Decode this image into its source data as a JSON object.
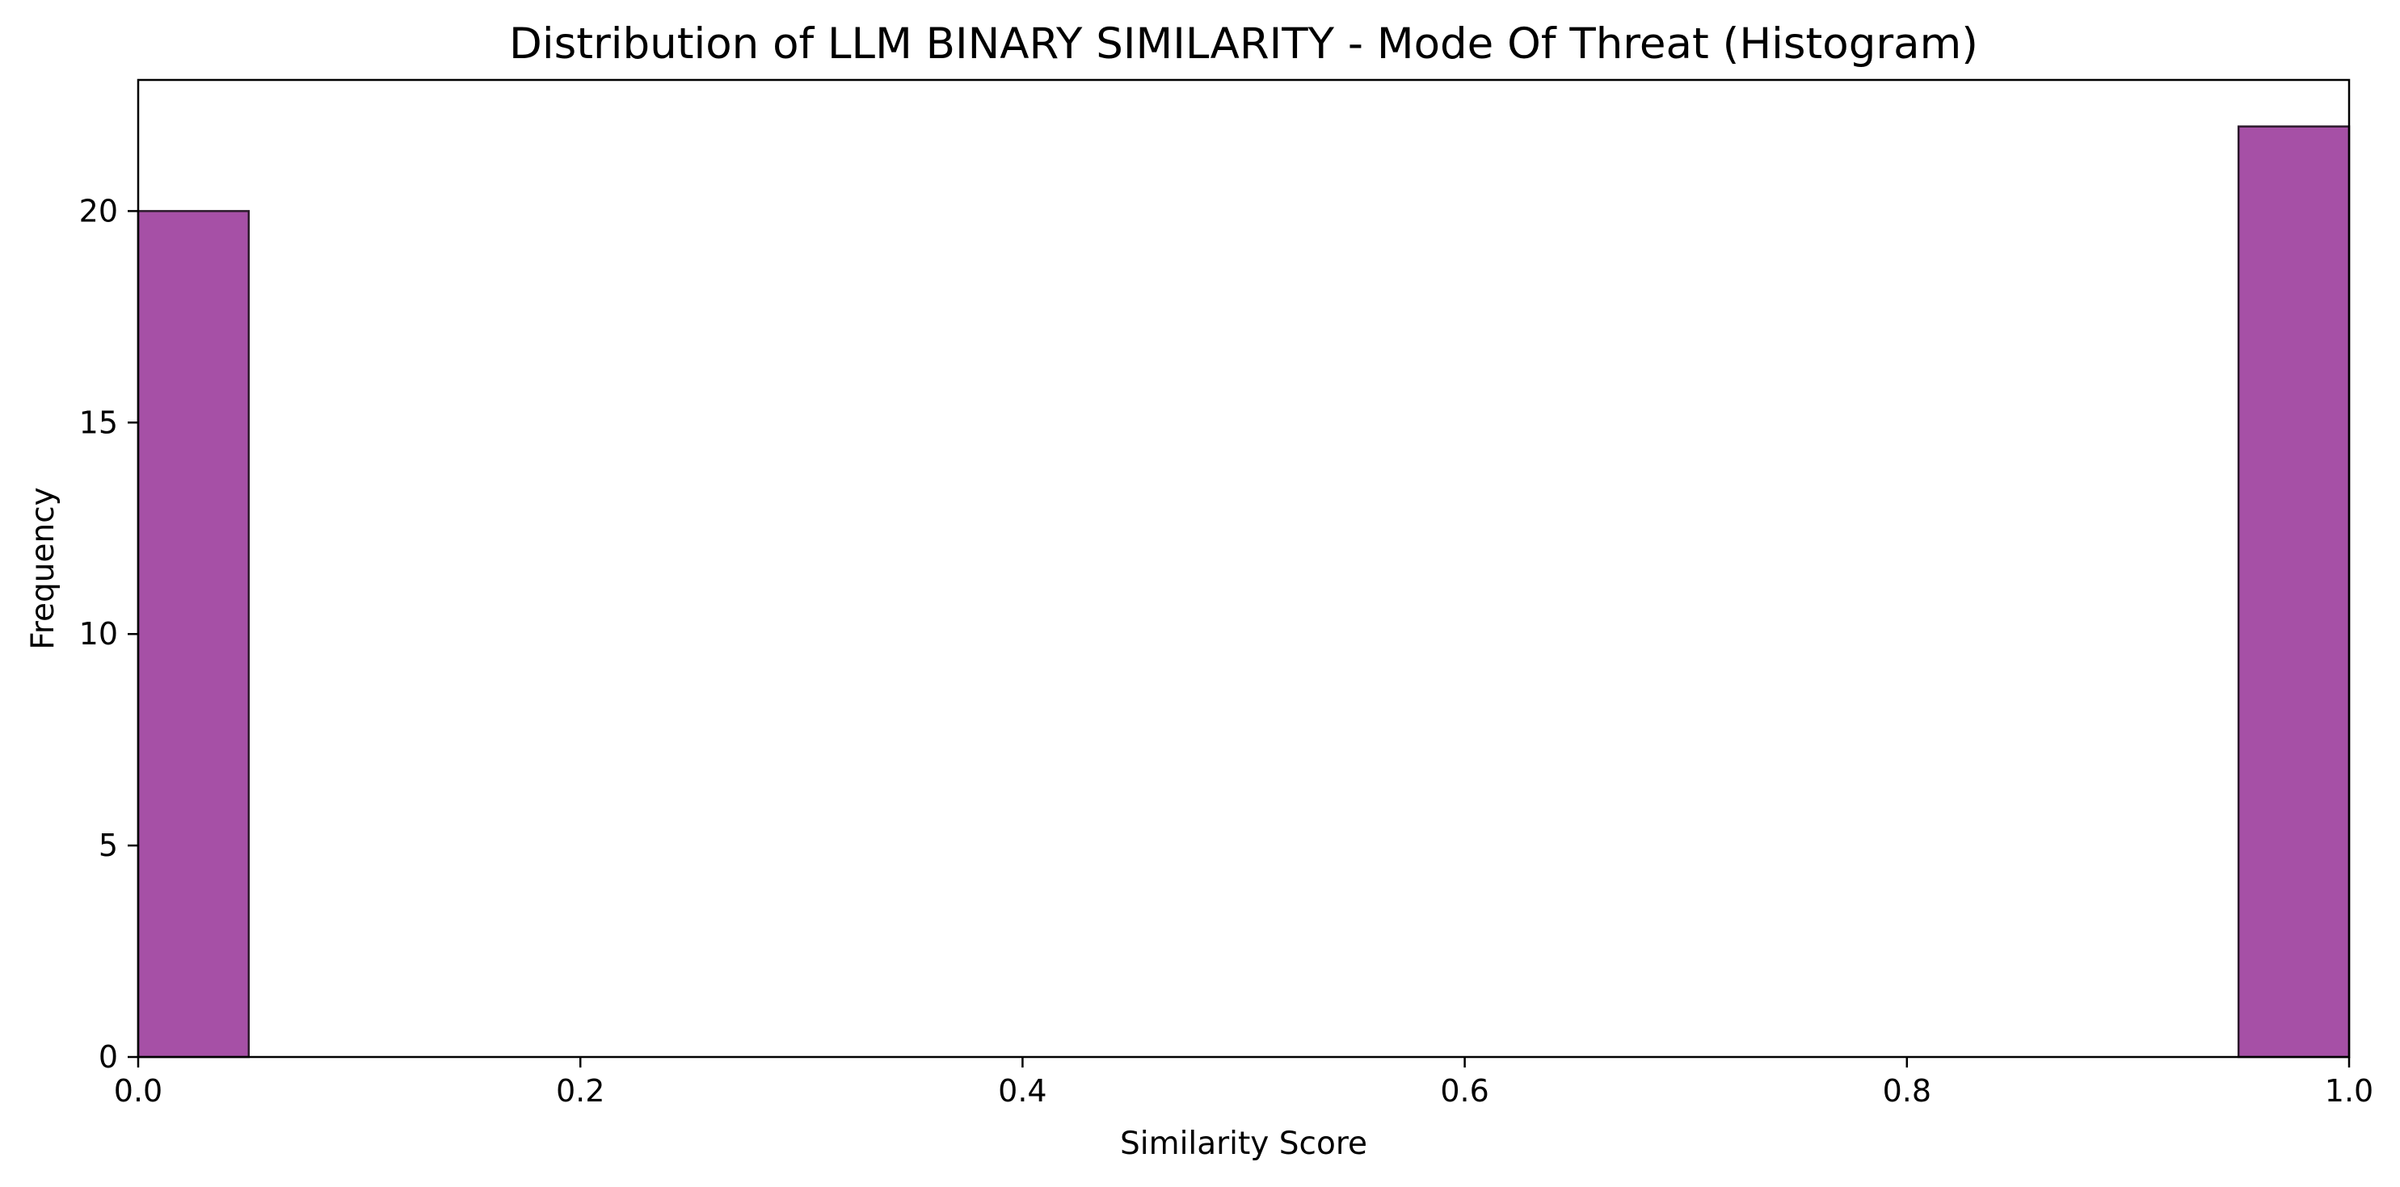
{
  "chart_data": {
    "type": "bar",
    "title": "Distribution of LLM BINARY SIMILARITY - Mode Of Threat (Histogram)",
    "xlabel": "Similarity Score",
    "ylabel": "Frequency",
    "xlim": [
      0.0,
      1.0
    ],
    "ylim": [
      0,
      23.1
    ],
    "x_ticks": [
      "0.0",
      "0.2",
      "0.4",
      "0.6",
      "0.8",
      "1.0"
    ],
    "y_ticks": [
      "0",
      "5",
      "10",
      "15",
      "20"
    ],
    "bins": [
      {
        "start": 0.0,
        "end": 0.05,
        "count": 20
      },
      {
        "start": 0.95,
        "end": 1.0,
        "count": 22
      }
    ],
    "bar_color": "#9c3d9c",
    "edge_color": "#2b1a2b",
    "grid": false,
    "legend": "none"
  }
}
